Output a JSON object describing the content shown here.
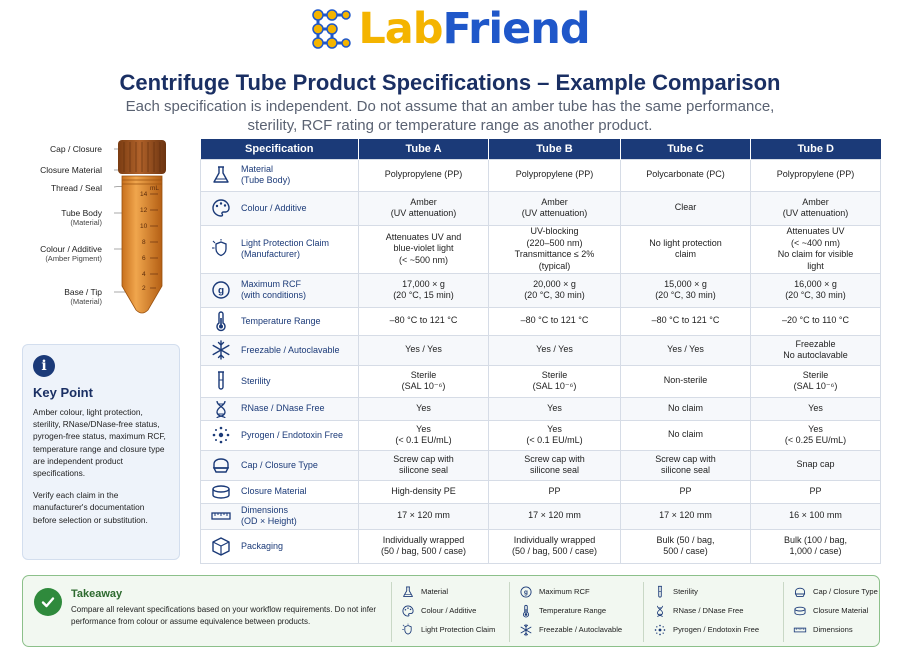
{
  "brand": {
    "name_part1": "Lab",
    "name_part2": "Friend"
  },
  "title": "Centrifuge Tube Product Specifications – Example Comparison",
  "subtitle": "Each specification is independent. Do not assume that an amber tube has the same performance, sterility, RCF rating or temperature range as another product.",
  "tube_diagram": {
    "labels": [
      {
        "text": "Cap / Closure",
        "sub": ""
      },
      {
        "text": "Closure Material",
        "sub": ""
      },
      {
        "text": "Thread / Seal",
        "sub": ""
      },
      {
        "text": "Tube Body",
        "sub": "(Material)"
      },
      {
        "text": "Colour / Additive",
        "sub": "(Amber Pigment)"
      },
      {
        "text": "Base / Tip",
        "sub": "(Material)"
      }
    ],
    "unit": "mL",
    "graduations": [
      "14",
      "12",
      "10",
      "8",
      "6",
      "4",
      "2"
    ]
  },
  "key_point": {
    "title": "Key Point",
    "text": "Amber colour, light protection, sterility, RNase/DNase-free status, pyrogen-free status, maximum RCF, temperature range and closure type are independent product specifications.",
    "text2": "Verify each claim in the manufacturer's documentation before selection or substitution."
  },
  "table": {
    "headers": [
      "Specification",
      "Tube A",
      "Tube B",
      "Tube C",
      "Tube D"
    ],
    "rows": [
      {
        "icon": "flask-icon",
        "spec": "Material",
        "spec_sub": "(Tube Body)",
        "values": [
          "Polypropylene (PP)",
          "Polypropylene (PP)",
          "Polycarbonate (PC)",
          "Polypropylene (PP)"
        ]
      },
      {
        "icon": "palette-icon",
        "spec": "Colour / Additive",
        "spec_sub": "",
        "values": [
          "Amber\n(UV attenuation)",
          "Amber\n(UV attenuation)",
          "Clear",
          "Amber\n(UV attenuation)"
        ]
      },
      {
        "icon": "light-shield-icon",
        "spec": "Light Protection Claim",
        "spec_sub": "(Manufacturer)",
        "values": [
          "Attenuates UV and\nblue-violet light\n(< ~500 nm)",
          "UV-blocking\n(220–500 nm)\nTransmittance ≤ 2%\n(typical)",
          "No light protection\nclaim",
          "Attenuates UV\n(< ~400 nm)\nNo claim for visible\nlight"
        ]
      },
      {
        "icon": "rcf-gauge-icon",
        "spec": "Maximum RCF",
        "spec_sub": "(with conditions)",
        "values": [
          "17,000 × g\n(20 °C, 15 min)",
          "20,000 × g\n(20 °C, 30 min)",
          "15,000 × g\n(20 °C, 30 min)",
          "16,000 × g\n(20 °C, 30 min)"
        ]
      },
      {
        "icon": "thermometer-icon",
        "spec": "Temperature Range",
        "spec_sub": "",
        "values": [
          "–80 °C to 121 °C",
          "–80 °C to 121 °C",
          "–80 °C to 121 °C",
          "–20 °C to 110 °C"
        ]
      },
      {
        "icon": "snowflake-icon",
        "spec": "Freezable / Autoclavable",
        "spec_sub": "",
        "values": [
          "Yes / Yes",
          "Yes / Yes",
          "Yes / Yes",
          "Freezable\nNo autoclavable"
        ]
      },
      {
        "icon": "test-tube-icon",
        "spec": "Sterility",
        "spec_sub": "",
        "values": [
          "Sterile\n(SAL 10⁻⁶)",
          "Sterile\n(SAL 10⁻⁶)",
          "Non-sterile",
          "Sterile\n(SAL 10⁻⁶)"
        ]
      },
      {
        "icon": "dna-icon",
        "spec": "RNase / DNase Free",
        "spec_sub": "",
        "values": [
          "Yes",
          "Yes",
          "No claim",
          "Yes"
        ]
      },
      {
        "icon": "pyrogen-icon",
        "spec": "Pyrogen / Endotoxin Free",
        "spec_sub": "",
        "values": [
          "Yes\n(< 0.1 EU/mL)",
          "Yes\n(< 0.1 EU/mL)",
          "No claim",
          "Yes\n(< 0.25 EU/mL)"
        ]
      },
      {
        "icon": "cap-icon",
        "spec": "Cap / Closure Type",
        "spec_sub": "",
        "values": [
          "Screw cap with\nsilicone seal",
          "Screw cap with\nsilicone seal",
          "Screw cap with\nsilicone seal",
          "Snap cap"
        ]
      },
      {
        "icon": "closure-material-icon",
        "spec": "Closure Material",
        "spec_sub": "",
        "values": [
          "High-density PE",
          "PP",
          "PP",
          "PP"
        ]
      },
      {
        "icon": "ruler-icon",
        "spec": "Dimensions",
        "spec_sub": "(OD × Height)",
        "values": [
          "17 × 120 mm",
          "17 × 120 mm",
          "17 × 120 mm",
          "16 × 100 mm"
        ]
      },
      {
        "icon": "box-icon",
        "spec": "Packaging",
        "spec_sub": "",
        "values": [
          "Individually wrapped\n(50 / bag, 500 / case)",
          "Individually wrapped\n(50 / bag, 500 / case)",
          "Bulk (50 / bag,\n500 / case)",
          "Bulk (100 / bag,\n1,000 / case)"
        ]
      }
    ]
  },
  "takeaway": {
    "title": "Takeaway",
    "text": "Compare all relevant specifications based on your workflow requirements. Do not infer performance from colour or assume equivalence between products.",
    "legend": [
      [
        {
          "icon": "flask-icon",
          "label": "Material"
        },
        {
          "icon": "palette-icon",
          "label": "Colour / Additive"
        },
        {
          "icon": "light-shield-icon",
          "label": "Light Protection Claim"
        }
      ],
      [
        {
          "icon": "rcf-gauge-icon",
          "label": "Maximum RCF"
        },
        {
          "icon": "thermometer-icon",
          "label": "Temperature Range"
        },
        {
          "icon": "snowflake-icon",
          "label": "Freezable / Autoclavable"
        }
      ],
      [
        {
          "icon": "test-tube-icon",
          "label": "Sterility"
        },
        {
          "icon": "dna-icon",
          "label": "RNase / DNase Free"
        },
        {
          "icon": "pyrogen-icon",
          "label": "Pyrogen / Endotoxin Free"
        }
      ],
      [
        {
          "icon": "cap-icon",
          "label": "Cap / Closure Type"
        },
        {
          "icon": "closure-material-icon",
          "label": "Closure Material"
        },
        {
          "icon": "ruler-icon",
          "label": "Dimensions"
        }
      ]
    ]
  },
  "colors": {
    "navy": "#1b3a78",
    "amber": "#c9741d",
    "green": "#2f8a3c",
    "logo_yellow": "#f4b400",
    "logo_blue": "#1f57c9"
  }
}
